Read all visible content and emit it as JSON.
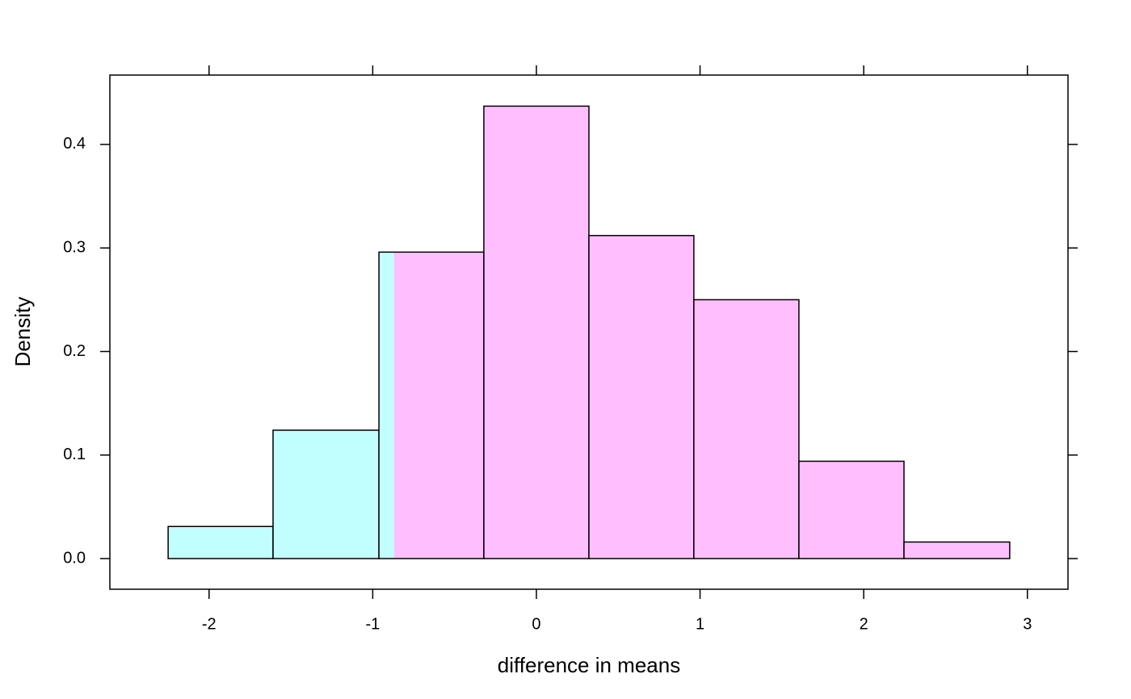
{
  "chart_data": {
    "type": "histogram",
    "x_label": "difference in means",
    "y_label": "Density",
    "bins": [
      -2.25,
      -1.609,
      -0.962,
      -0.321,
      0.321,
      0.962,
      1.604,
      2.246,
      2.892
    ],
    "values": [
      0.031,
      0.124,
      0.296,
      0.437,
      0.312,
      0.25,
      0.094,
      0.016
    ],
    "shade_split": -0.869,
    "colors": [
      "#c1ffff",
      "#ffbfff"
    ],
    "xlim": [
      -2.606,
      3.248
    ],
    "ylim": [
      -0.0296,
      0.467
    ],
    "xticks": [
      -2,
      -1,
      0,
      1,
      2,
      3
    ],
    "yticks": [
      {
        "value": 0,
        "label": "0.0"
      },
      0.1,
      0.2,
      0.3,
      0.4
    ]
  }
}
